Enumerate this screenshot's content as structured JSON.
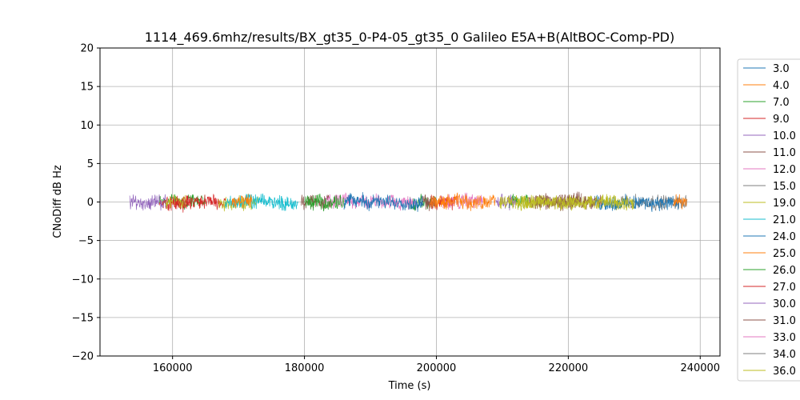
{
  "chart_data": {
    "type": "line",
    "title": "1114_469.6mhz/results/BX_gt35_0-P4-05_gt35_0 Galileo E5A+B(AltBOC-Comp-PD)",
    "xlabel": "Time (s)",
    "ylabel": "CNoDiff dB Hz",
    "xlim": [
      149000,
      243000
    ],
    "ylim": [
      -20,
      20
    ],
    "xticks": [
      160000,
      180000,
      200000,
      220000,
      240000
    ],
    "yticks": [
      -20,
      -15,
      -10,
      -5,
      0,
      5,
      10,
      15,
      20
    ],
    "grid": true,
    "legend_position": "right",
    "series": [
      {
        "name": "3.0",
        "color": "#1f77b4",
        "segments": []
      },
      {
        "name": "4.0",
        "color": "#ff7f0e",
        "segments": []
      },
      {
        "name": "7.0",
        "color": "#2ca02c",
        "segments": [
          [
            158000,
            165000
          ],
          [
            196000,
            200000
          ],
          [
            211000,
            214000
          ]
        ]
      },
      {
        "name": "9.0",
        "color": "#d62728",
        "segments": [
          [
            158000,
            168000
          ],
          [
            199000,
            203000
          ]
        ]
      },
      {
        "name": "10.0",
        "color": "#9467bd",
        "segments": [
          [
            153500,
            159000
          ],
          [
            209000,
            212000
          ]
        ]
      },
      {
        "name": "11.0",
        "color": "#8c564b",
        "segments": [
          [
            179500,
            184000
          ],
          [
            197500,
            200000
          ],
          [
            214000,
            222000
          ]
        ]
      },
      {
        "name": "12.0",
        "color": "#e377c2",
        "segments": [
          [
            183000,
            197000
          ],
          [
            201000,
            207000
          ]
        ]
      },
      {
        "name": "15.0",
        "color": "#7f7f7f",
        "segments": [
          [
            228000,
            238000
          ]
        ]
      },
      {
        "name": "19.0",
        "color": "#bcbd22",
        "segments": [
          [
            159000,
            162000
          ],
          [
            167000,
            173000
          ],
          [
            209500,
            229000
          ]
        ]
      },
      {
        "name": "21.0",
        "color": "#17becf",
        "segments": [
          [
            168000,
            179000
          ]
        ]
      },
      {
        "name": "24.0",
        "color": "#1f77b4",
        "segments": [
          [
            186000,
            198000
          ],
          [
            224000,
            237000
          ]
        ]
      },
      {
        "name": "25.0",
        "color": "#ff7f0e",
        "segments": [
          [
            169000,
            172000
          ],
          [
            199000,
            209000
          ],
          [
            236000,
            238000
          ]
        ]
      },
      {
        "name": "26.0",
        "color": "#2ca02c",
        "segments": [
          [
            180000,
            186000
          ]
        ]
      },
      {
        "name": "27.0",
        "color": "#d62728",
        "segments": [
          [
            160000,
            163000
          ]
        ]
      },
      {
        "name": "30.0",
        "color": "#9467bd",
        "segments": []
      },
      {
        "name": "31.0",
        "color": "#8c564b",
        "segments": [
          [
            215000,
            225000
          ]
        ]
      },
      {
        "name": "33.0",
        "color": "#e377c2",
        "segments": []
      },
      {
        "name": "34.0",
        "color": "#7f7f7f",
        "segments": []
      },
      {
        "name": "36.0",
        "color": "#bcbd22",
        "segments": [
          [
            212000,
            230000
          ]
        ]
      }
    ]
  }
}
